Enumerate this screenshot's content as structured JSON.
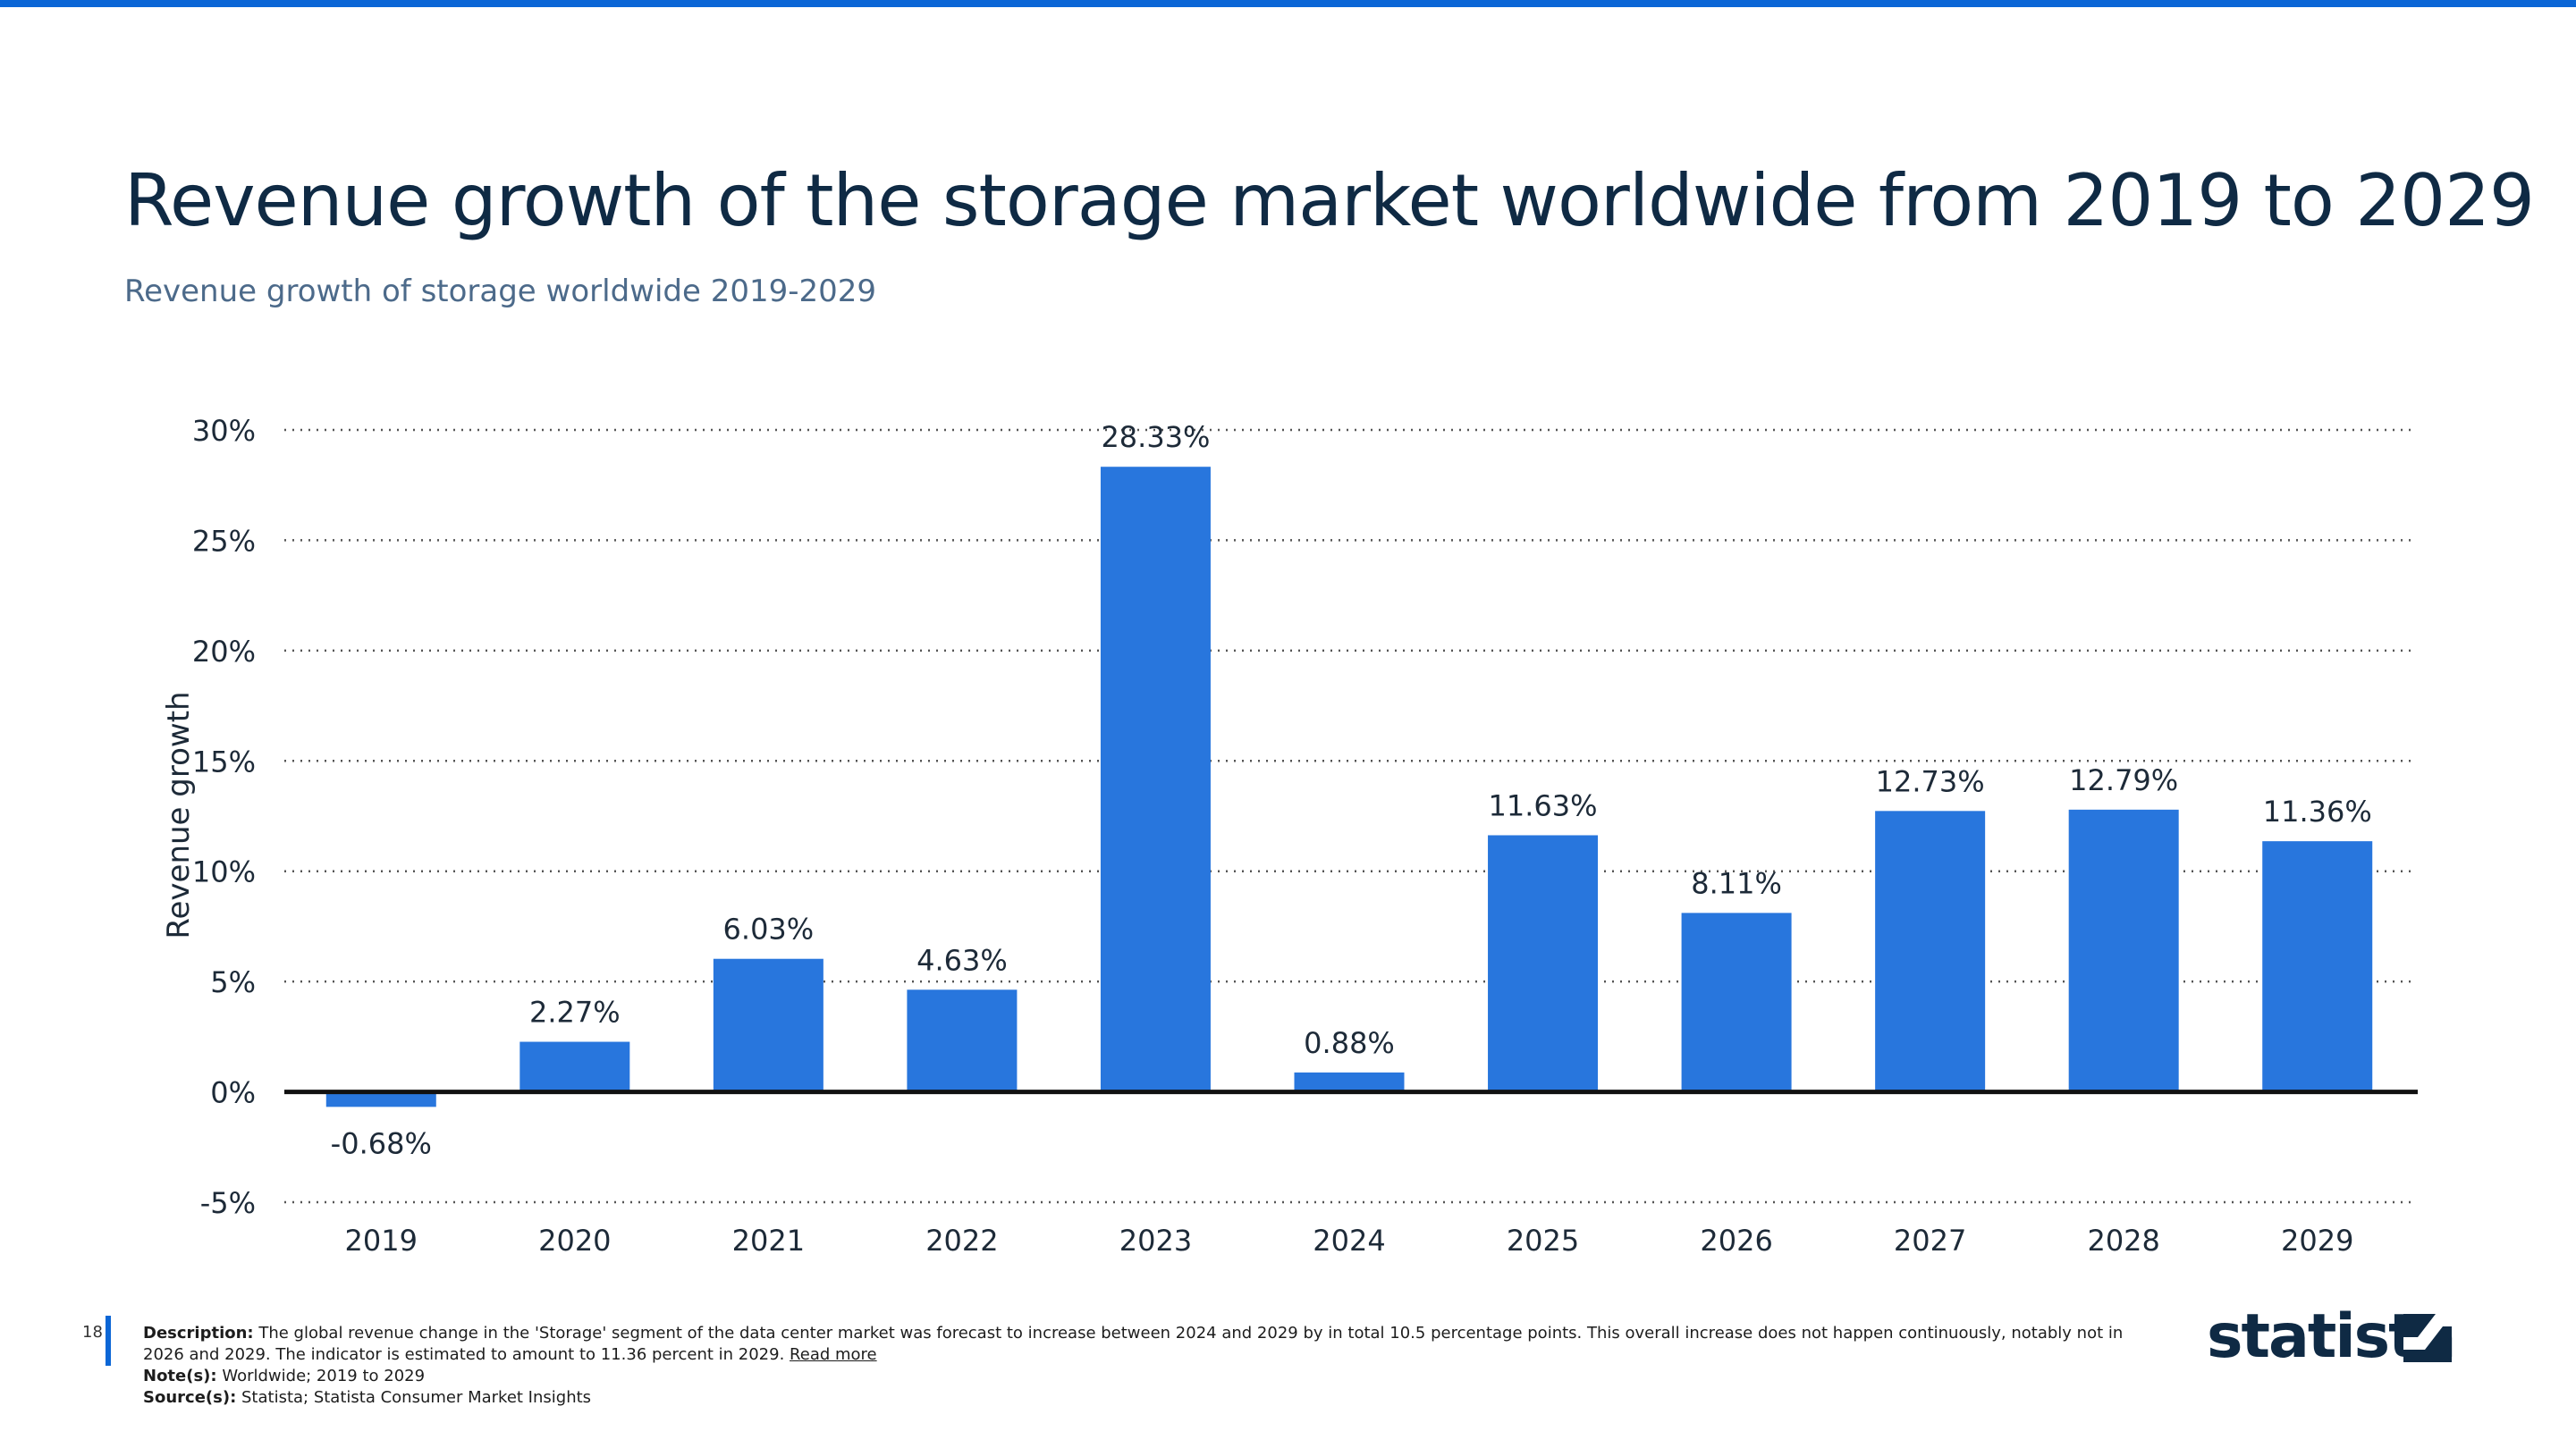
{
  "header": {
    "title": "Revenue growth of the storage market worldwide from 2019 to 2029",
    "subtitle": "Revenue growth of storage worldwide 2019-2029"
  },
  "chart_data": {
    "type": "bar",
    "categories": [
      "2019",
      "2020",
      "2021",
      "2022",
      "2023",
      "2024",
      "2025",
      "2026",
      "2027",
      "2028",
      "2029"
    ],
    "values": [
      -0.68,
      2.27,
      6.03,
      4.63,
      28.33,
      0.88,
      11.63,
      8.11,
      12.73,
      12.79,
      11.36
    ],
    "data_labels": [
      "-0.68%",
      "2.27%",
      "6.03%",
      "4.63%",
      "28.33%",
      "0.88%",
      "11.63%",
      "8.11%",
      "12.73%",
      "12.79%",
      "11.36%"
    ],
    "ylabel": "Revenue growth",
    "ylim": [
      -5,
      30
    ],
    "yticks": [
      -5,
      0,
      5,
      10,
      15,
      20,
      25,
      30
    ],
    "ytick_labels": [
      "-5%",
      "0%",
      "5%",
      "10%",
      "15%",
      "20%",
      "25%",
      "30%"
    ],
    "grid": true,
    "bar_color": "#2876dd"
  },
  "footer": {
    "page_number": "18",
    "description_label": "Description:",
    "description": "The global revenue change in the 'Storage' segment of the data center market was forecast to increase between 2024 and 2029 by in total 10.5 percentage points. This overall increase does not happen continuously, notably not in 2026 and 2029. The indicator is estimated to amount to 11.36 percent in 2029.",
    "read_more": "Read more",
    "note_label": "Note(s):",
    "note": "Worldwide; 2019 to 2029",
    "source_label": "Source(s):",
    "source": "Statista; Statista Consumer Market Insights"
  },
  "brand": {
    "logo_text": "statista",
    "accent_color": "#0b66d6",
    "logo_icon": "statista-logo-icon"
  }
}
